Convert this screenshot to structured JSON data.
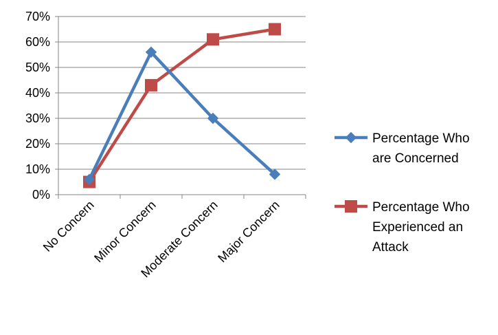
{
  "chart_data": {
    "type": "line",
    "categories": [
      "No Concern",
      "Minor Concern",
      "Moderate Concern",
      "Major Concern"
    ],
    "y_tick_labels": [
      "0%",
      "10%",
      "20%",
      "30%",
      "40%",
      "50%",
      "60%",
      "70%"
    ],
    "ylim": [
      0,
      70
    ],
    "y_unit": "%",
    "grid": true,
    "legend_position": "right",
    "series": [
      {
        "name": "Percentage Who are Concerned",
        "legend_lines": [
          "Percentage Who",
          "are Concerned"
        ],
        "values": [
          6,
          56,
          30,
          8
        ],
        "color": "#4a7ebb",
        "marker": "diamond"
      },
      {
        "name": "Percentage Who Experienced an Attack",
        "legend_lines": [
          "Percentage Who",
          "Experienced an",
          "Attack"
        ],
        "values": [
          5,
          43,
          61,
          65
        ],
        "color": "#be4b48",
        "marker": "square"
      }
    ]
  }
}
